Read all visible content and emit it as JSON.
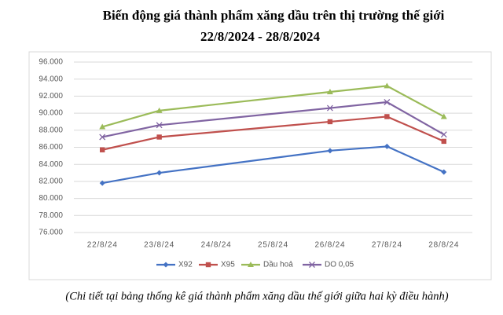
{
  "chart_data": {
    "type": "line",
    "title": "Biến động giá thành phẩm xăng dầu trên thị trường thế giới",
    "subtitle": "22/8/2024 - 28/8/2024",
    "caption": "(Chi tiết tại bảng thống kê giá thành phẩm xăng dầu thế giới giữa hai kỳ điều hành)",
    "categories": [
      "22/8/24",
      "23/8/24",
      "24/8/24",
      "25/8/24",
      "26/8/24",
      "27/8/24",
      "28/8/24"
    ],
    "connect_gaps": true,
    "series": [
      {
        "name": "X92",
        "color": "#4472c4",
        "marker": "diamond",
        "values": [
          81800,
          83000,
          null,
          null,
          85600,
          86100,
          83100
        ]
      },
      {
        "name": "X95",
        "color": "#c0504d",
        "marker": "square",
        "values": [
          85700,
          87200,
          null,
          null,
          89000,
          89600,
          86700
        ]
      },
      {
        "name": "Dầu hoả",
        "color": "#9bbb59",
        "marker": "triangle",
        "values": [
          88400,
          90300,
          null,
          null,
          92500,
          93200,
          89600
        ]
      },
      {
        "name": "DO 0,05",
        "color": "#8064a2",
        "marker": "x",
        "values": [
          87200,
          88600,
          null,
          null,
          90600,
          91300,
          87500
        ]
      }
    ],
    "ylim": [
      76000,
      96000
    ],
    "yticks": [
      {
        "value": 76000,
        "label": "76.000"
      },
      {
        "value": 78000,
        "label": "78.000"
      },
      {
        "value": 80000,
        "label": "80.000"
      },
      {
        "value": 82000,
        "label": "82.000"
      },
      {
        "value": 84000,
        "label": "84.000"
      },
      {
        "value": 86000,
        "label": "86.000"
      },
      {
        "value": 88000,
        "label": "88.000"
      },
      {
        "value": 90000,
        "label": "90.000"
      },
      {
        "value": 92000,
        "label": "92.000"
      },
      {
        "value": 94000,
        "label": "94.000"
      },
      {
        "value": 96000,
        "label": "96.000"
      }
    ],
    "grid": true,
    "legend": "bottom"
  }
}
